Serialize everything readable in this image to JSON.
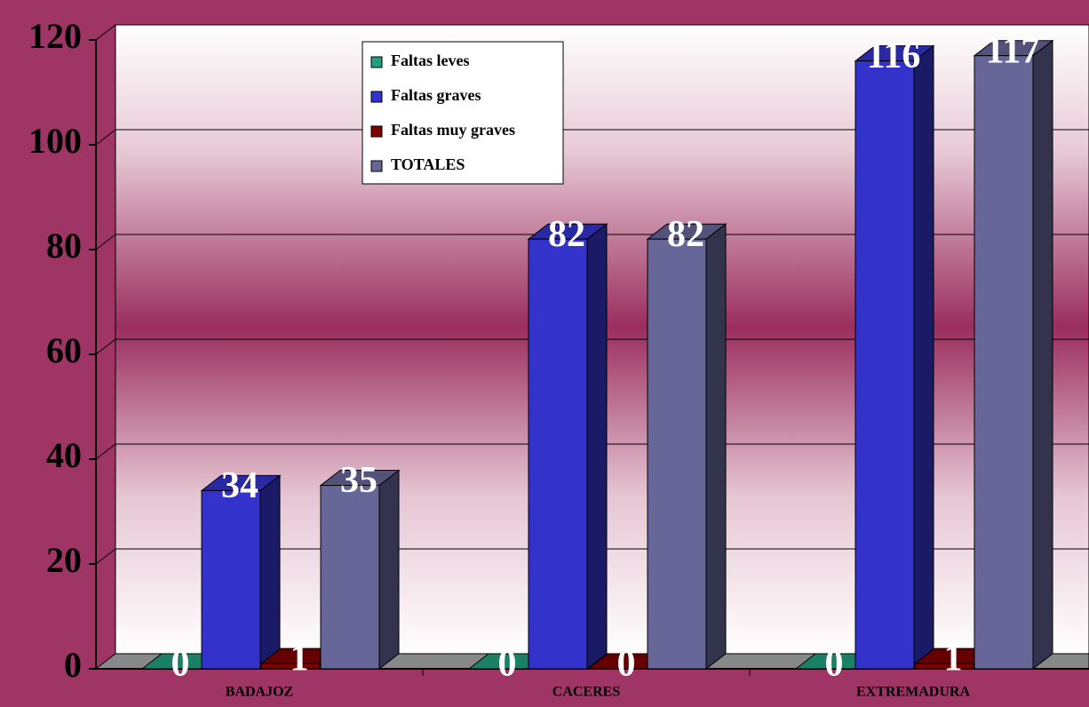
{
  "chart_data": {
    "type": "bar3d",
    "categories": [
      "BADAJOZ",
      "CACERES",
      "EXTREMADURA"
    ],
    "series": [
      {
        "name": "Faltas leves",
        "color": "#20a080",
        "values": [
          0,
          0,
          0
        ]
      },
      {
        "name": "Faltas graves",
        "color": "#3333cc",
        "values": [
          34,
          82,
          116
        ]
      },
      {
        "name": "Faltas muy graves",
        "color": "#800000",
        "values": [
          1,
          0,
          1
        ]
      },
      {
        "name": "TOTALES",
        "color": "#666699",
        "values": [
          35,
          82,
          117
        ]
      }
    ],
    "ylim": [
      0,
      120
    ],
    "yticks": [
      0,
      20,
      40,
      60,
      80,
      100,
      120
    ],
    "grid": true,
    "legend": "top"
  }
}
